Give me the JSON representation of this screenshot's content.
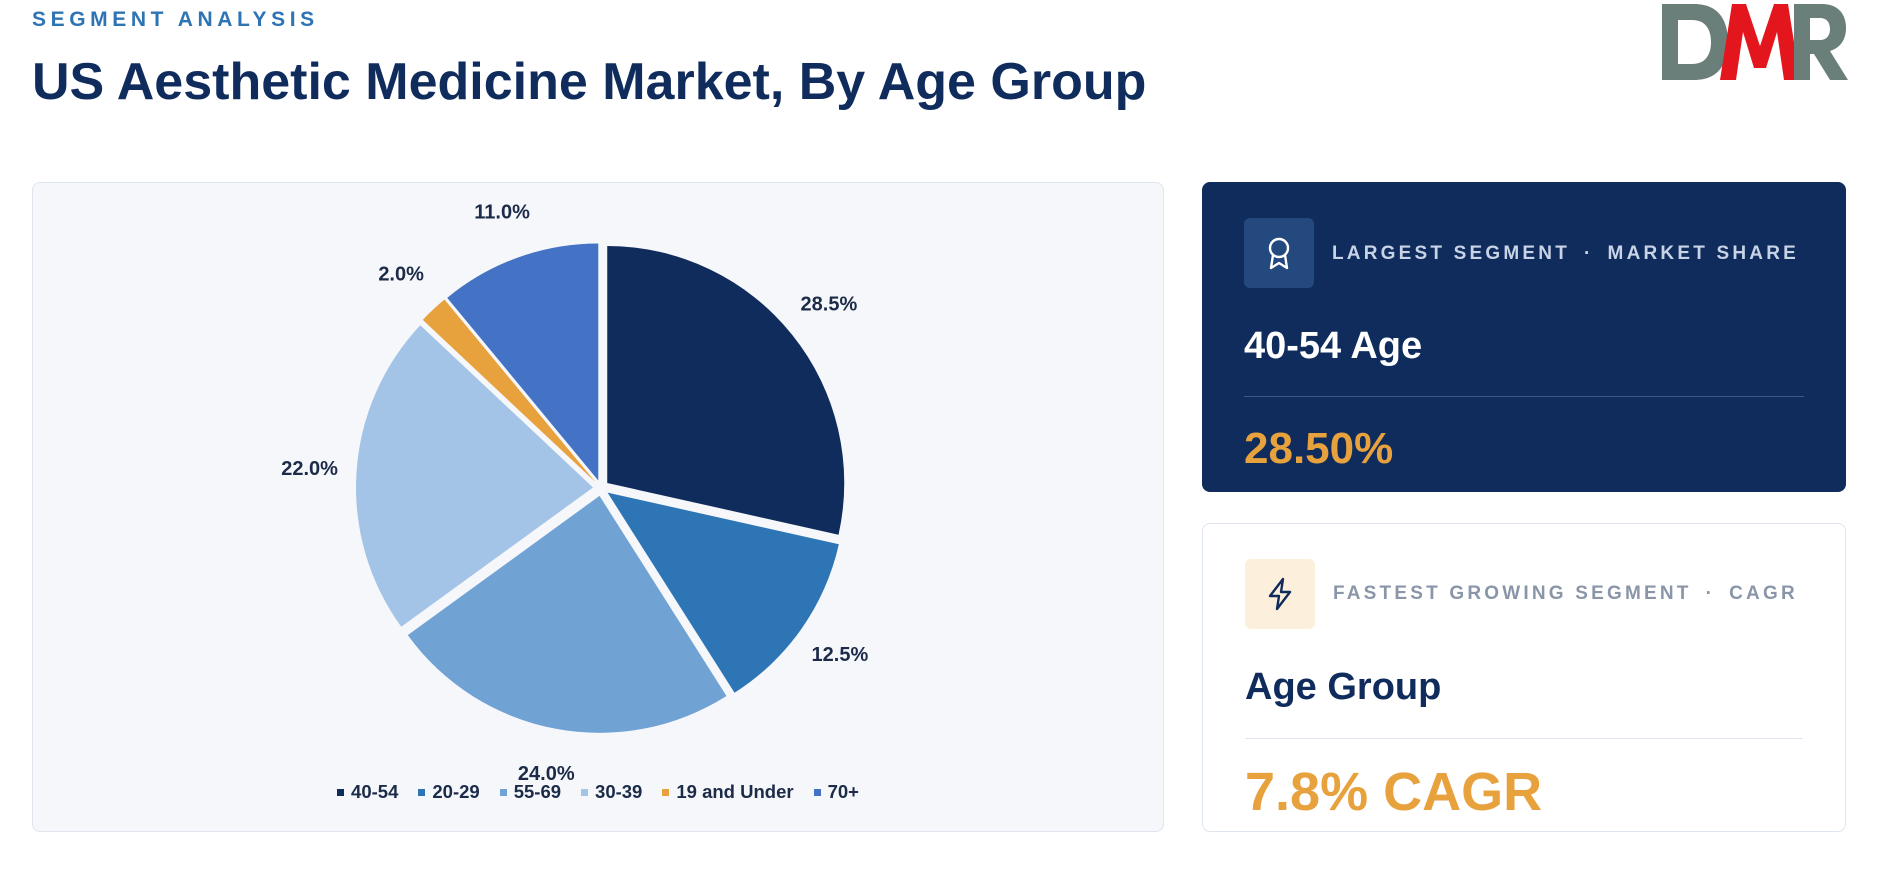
{
  "header": {
    "eyebrow": "SEGMENT ANALYSIS",
    "title": "US Aesthetic Medicine Market, By Age Group"
  },
  "logo": {
    "text": "DMR",
    "colors": {
      "d": "#6b7f7a",
      "m": "#e3161d",
      "r": "#6b7f7a"
    }
  },
  "chart_data": {
    "type": "pie",
    "categories": [
      "40-54",
      "20-29",
      "55-69",
      "30-39",
      "19 and Under",
      "70+"
    ],
    "values": [
      28.5,
      12.5,
      24.0,
      22.0,
      2.0,
      11.0
    ],
    "value_labels": [
      "28.5%",
      "12.5%",
      "24.0%",
      "22.0%",
      "2.0%",
      "11.0%"
    ],
    "colors": [
      "#0f2c5c",
      "#2e75b6",
      "#70a3d4",
      "#a3c4e6",
      "#e8a23d",
      "#4472c4"
    ],
    "start_angle_deg": 0,
    "direction": "clockwise",
    "legend_position": "bottom"
  },
  "cards": {
    "largest": {
      "icon": "award-ribbon-icon",
      "kicker_left": "LARGEST SEGMENT",
      "kicker_sep": "·",
      "kicker_right": "MARKET SHARE",
      "heading": "40-54 Age",
      "value": "28.50%"
    },
    "fastest": {
      "icon": "lightning-bolt-icon",
      "kicker_left": "FASTEST GROWING SEGMENT",
      "kicker_sep": "·",
      "kicker_right": "CAGR",
      "heading": "Age Group",
      "value": "7.8% CAGR"
    }
  },
  "colors": {
    "navy": "#0f2c5c",
    "accent_blue": "#2e74b5",
    "accent_orange": "#e8a23d"
  }
}
